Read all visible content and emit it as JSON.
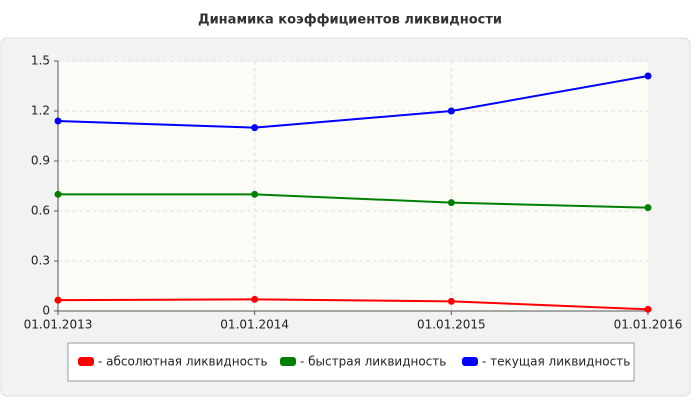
{
  "chart_data": {
    "type": "line",
    "title": "Динамика коэффициентов ликвидности",
    "categories": [
      "01.01.2013",
      "01.01.2014",
      "01.01.2015",
      "01.01.2016"
    ],
    "series": [
      {
        "name": "- абсолютная ликвидность",
        "color": "#ff0000",
        "values": [
          0.065,
          0.07,
          0.058,
          0.01
        ]
      },
      {
        "name": "- быстрая ликвидность",
        "color": "#008000",
        "values": [
          0.7,
          0.7,
          0.65,
          0.62
        ]
      },
      {
        "name": "- текущая ликвидность",
        "color": "#0000ff",
        "values": [
          1.14,
          1.1,
          1.2,
          1.41
        ]
      }
    ],
    "ylim": [
      0,
      1.5
    ],
    "yticks": [
      0,
      0.3,
      0.6,
      0.9,
      1.2,
      1.5
    ],
    "grid": true,
    "legend": "bottom"
  }
}
